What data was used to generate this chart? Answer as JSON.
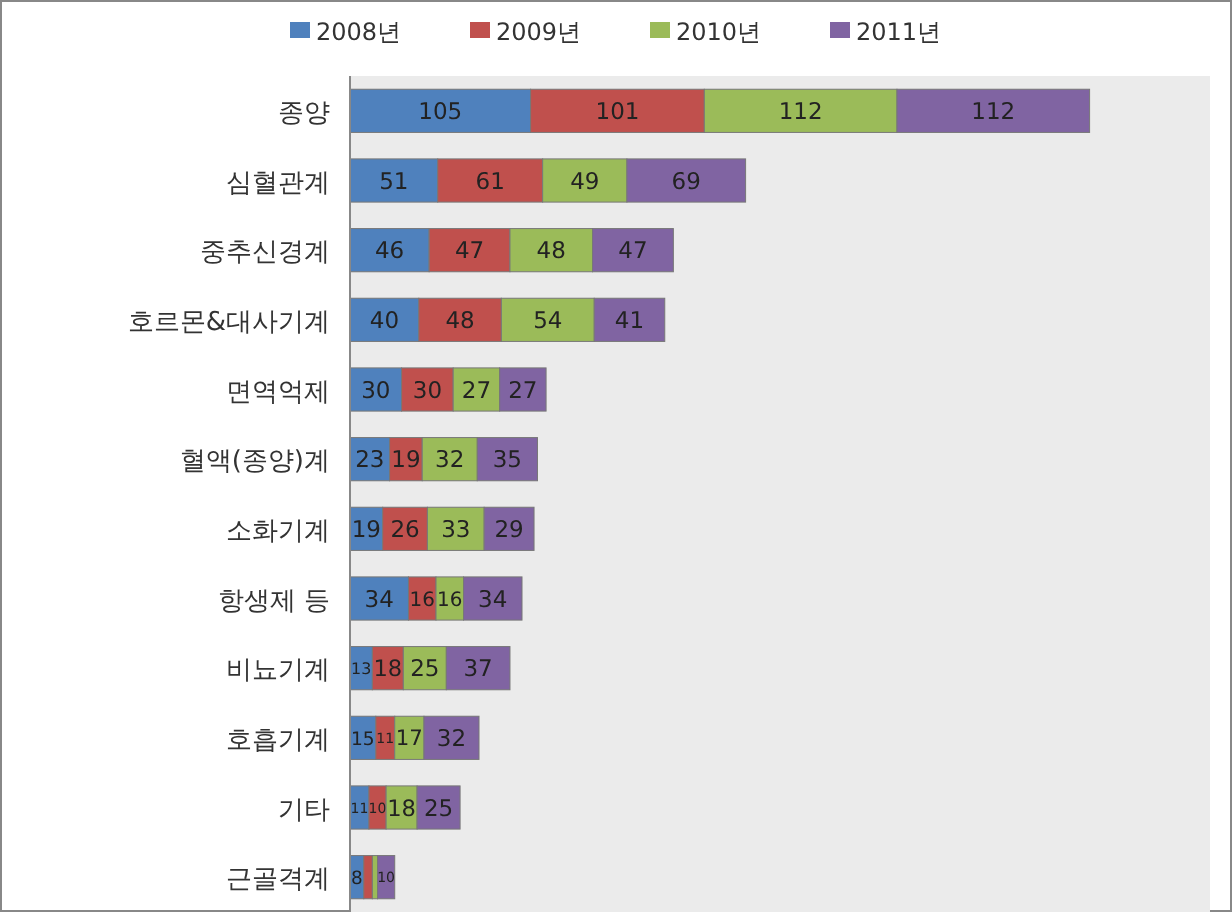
{
  "chart_data": {
    "type": "bar",
    "orientation": "horizontal",
    "stacked": true,
    "legend": "top",
    "xlim": [
      0,
      500
    ],
    "categories": [
      "종양",
      "심혈관계",
      "중추신경계",
      "호르몬&대사기계",
      "면역억제",
      "혈액(종양)계",
      "소화기계",
      "항생제 등",
      "비뇨기계",
      "호흡기계",
      "기타",
      "근골격계"
    ],
    "series": [
      {
        "name": "2008년",
        "color": "#4f81bd",
        "values": [
          105,
          51,
          46,
          40,
          30,
          23,
          19,
          34,
          13,
          15,
          11,
          8
        ],
        "value_labels": [
          "105",
          "51",
          "46",
          "40",
          "30",
          "23",
          "19",
          "34",
          "13",
          "15",
          "11",
          "8"
        ]
      },
      {
        "name": "2009년",
        "color": "#c0504d",
        "values": [
          101,
          61,
          47,
          48,
          30,
          19,
          26,
          16,
          18,
          11,
          10,
          5
        ],
        "value_labels": [
          "101",
          "61",
          "47",
          "48",
          "30",
          "19",
          "26",
          "16",
          "18",
          "11",
          "10",
          null
        ]
      },
      {
        "name": "2010년",
        "color": "#9bbb59",
        "values": [
          112,
          49,
          48,
          54,
          27,
          32,
          33,
          16,
          25,
          17,
          18,
          3
        ],
        "value_labels": [
          "112",
          "49",
          "48",
          "54",
          "27",
          "32",
          "33",
          "16",
          "25",
          "17",
          "18",
          null
        ]
      },
      {
        "name": "2011년",
        "color": "#8064a2",
        "values": [
          112,
          69,
          47,
          41,
          27,
          35,
          29,
          34,
          37,
          32,
          25,
          10
        ],
        "value_labels": [
          "112",
          "69",
          "47",
          "41",
          "27",
          "35",
          "29",
          "34",
          "37",
          "32",
          "25",
          "10"
        ]
      }
    ]
  }
}
